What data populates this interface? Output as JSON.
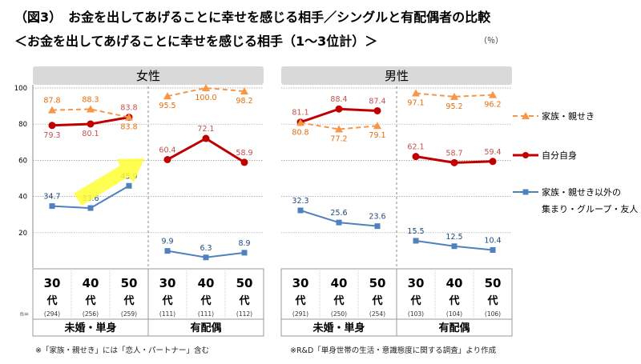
{
  "title": "（図3）　お金を出してあげることに幸せを感じる相手／シングルと有配偶者の比較",
  "subtitle": "＜お金を出してあげることに幸せを感じる相手（1～3位計）＞",
  "unit": "（％）",
  "footnote_left": "※「家族・親せき」には「恋人・パートナー」含む",
  "footnote_right": "※R&D「単身世帯の生活・意識態度に関する調査」より作成",
  "chart_data": {
    "type": "line",
    "ylim": [
      0,
      100
    ],
    "yticks": [
      20,
      40,
      60,
      80,
      100
    ],
    "grid": true,
    "legend_placement": "right",
    "n_label": "n=",
    "colors": {
      "family": "#F79646",
      "self": "#C00000",
      "others": "#4F81BD"
    },
    "series_names": [
      "家族・親せき",
      "自分自身",
      "家族・親せき以外の\n集まり・グループ・友人"
    ],
    "legend": [
      {
        "key": "family",
        "label": "家族・親せき"
      },
      {
        "key": "self",
        "label": "自分自身"
      },
      {
        "key": "others",
        "label1": "家族・親せき以外の",
        "label2": "集まり・グループ・友人"
      }
    ],
    "panels": [
      {
        "title": "女性",
        "groups": [
          {
            "label": "未婚・単身",
            "categories": [
              {
                "age": "30",
                "suffix": "代",
                "n": "(294)"
              },
              {
                "age": "40",
                "suffix": "代",
                "n": "(256)"
              },
              {
                "age": "50",
                "suffix": "代",
                "n": "(259)"
              }
            ],
            "family": [
              87.8,
              88.3,
              83.8
            ],
            "self": [
              79.3,
              80.1,
              83.8
            ],
            "others": [
              34.7,
              33.6,
              45.9
            ]
          },
          {
            "label": "有配偶",
            "categories": [
              {
                "age": "30",
                "suffix": "代",
                "n": "(111)"
              },
              {
                "age": "40",
                "suffix": "代",
                "n": "(111)"
              },
              {
                "age": "50",
                "suffix": "代",
                "n": "(112)"
              }
            ],
            "family": [
              95.5,
              100.0,
              98.2
            ],
            "self": [
              60.4,
              72.1,
              58.9
            ],
            "others": [
              9.9,
              6.3,
              8.9
            ]
          }
        ]
      },
      {
        "title": "男性",
        "groups": [
          {
            "label": "未婚・単身",
            "categories": [
              {
                "age": "30",
                "suffix": "代",
                "n": "(291)"
              },
              {
                "age": "40",
                "suffix": "代",
                "n": "(250)"
              },
              {
                "age": "50",
                "suffix": "代",
                "n": "(254)"
              }
            ],
            "family": [
              80.8,
              77.2,
              79.1
            ],
            "self": [
              81.1,
              88.4,
              87.4
            ],
            "others": [
              32.3,
              25.6,
              23.6
            ]
          },
          {
            "label": "有配偶",
            "categories": [
              {
                "age": "30",
                "suffix": "代",
                "n": "(103)"
              },
              {
                "age": "40",
                "suffix": "代",
                "n": "(104)"
              },
              {
                "age": "50",
                "suffix": "代",
                "n": "(106)"
              }
            ],
            "family": [
              97.1,
              95.2,
              96.2
            ],
            "self": [
              62.1,
              58.7,
              59.4
            ],
            "others": [
              15.5,
              12.5,
              10.4
            ]
          }
        ]
      }
    ]
  }
}
